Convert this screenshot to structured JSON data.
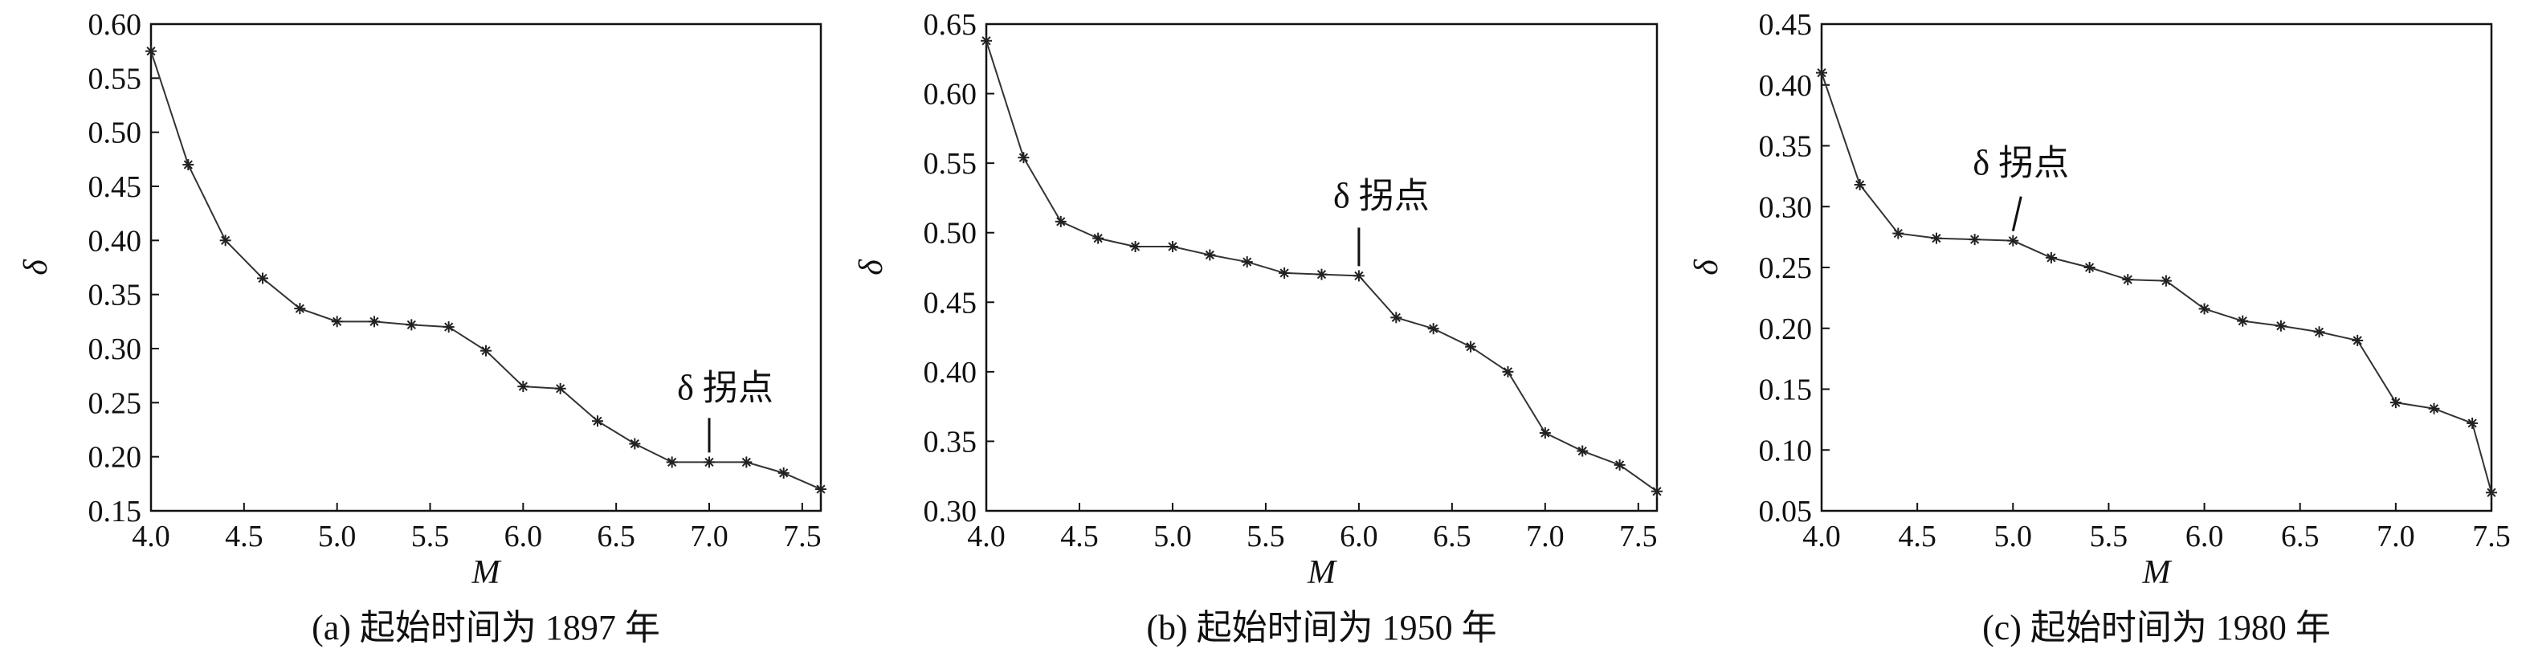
{
  "chart_data": [
    {
      "type": "line",
      "caption": "(a) 起始时间为 1897 年",
      "xlabel": "M",
      "ylabel": "δ",
      "xlim": [
        4.0,
        7.6
      ],
      "ylim": [
        0.15,
        0.6
      ],
      "xticks": [
        "4.0",
        "4.5",
        "5.0",
        "5.5",
        "6.0",
        "6.5",
        "7.0",
        "7.5"
      ],
      "yticks": [
        "0.15",
        "0.20",
        "0.25",
        "0.30",
        "0.35",
        "0.40",
        "0.45",
        "0.50",
        "0.55",
        "0.60"
      ],
      "grid": false,
      "marker": "asterisk",
      "x": [
        4.0,
        4.2,
        4.4,
        4.6,
        4.8,
        5.0,
        5.2,
        5.4,
        5.6,
        5.8,
        6.0,
        6.2,
        6.4,
        6.6,
        6.8,
        7.0,
        7.2,
        7.4,
        7.6
      ],
      "y": [
        0.575,
        0.47,
        0.4,
        0.365,
        0.337,
        0.325,
        0.325,
        0.322,
        0.32,
        0.298,
        0.265,
        0.263,
        0.233,
        0.212,
        0.195,
        0.195,
        0.195,
        0.185,
        0.17
      ],
      "annotation": {
        "text": "δ 拐点",
        "x": 7.0,
        "y": 0.195
      }
    },
    {
      "type": "line",
      "caption": "(b) 起始时间为 1950 年",
      "xlabel": "M",
      "ylabel": "δ",
      "xlim": [
        4.0,
        7.6
      ],
      "ylim": [
        0.3,
        0.65
      ],
      "xticks": [
        "4.0",
        "4.5",
        "5.0",
        "5.5",
        "6.0",
        "6.5",
        "7.0",
        "7.5"
      ],
      "yticks": [
        "0.30",
        "0.35",
        "0.40",
        "0.45",
        "0.50",
        "0.55",
        "0.60",
        "0.65"
      ],
      "grid": false,
      "marker": "asterisk",
      "x": [
        4.0,
        4.2,
        4.4,
        4.6,
        4.8,
        5.0,
        5.2,
        5.4,
        5.6,
        5.8,
        6.0,
        6.2,
        6.4,
        6.6,
        6.8,
        7.0,
        7.2,
        7.4,
        7.6
      ],
      "y": [
        0.638,
        0.554,
        0.508,
        0.496,
        0.49,
        0.49,
        0.484,
        0.479,
        0.471,
        0.47,
        0.469,
        0.439,
        0.431,
        0.418,
        0.4,
        0.356,
        0.343,
        0.333,
        0.314
      ],
      "annotation": {
        "text": "δ 拐点",
        "x": 6.0,
        "y": 0.469
      }
    },
    {
      "type": "line",
      "caption": "(c) 起始时间为 1980 年",
      "xlabel": "M",
      "ylabel": "δ",
      "xlim": [
        4.0,
        7.5
      ],
      "ylim": [
        0.05,
        0.45
      ],
      "xticks": [
        "4.0",
        "4.5",
        "5.0",
        "5.5",
        "6.0",
        "6.5",
        "7.0",
        "7.5"
      ],
      "yticks": [
        "0.05",
        "0.10",
        "0.15",
        "0.20",
        "0.25",
        "0.30",
        "0.35",
        "0.40",
        "0.45"
      ],
      "grid": false,
      "marker": "asterisk",
      "x": [
        4.0,
        4.2,
        4.4,
        4.6,
        4.8,
        5.0,
        5.2,
        5.4,
        5.6,
        5.8,
        6.0,
        6.2,
        6.4,
        6.6,
        6.8,
        7.0,
        7.2,
        7.4,
        7.5
      ],
      "y": [
        0.41,
        0.318,
        0.278,
        0.274,
        0.273,
        0.272,
        0.258,
        0.25,
        0.24,
        0.239,
        0.216,
        0.206,
        0.202,
        0.197,
        0.19,
        0.139,
        0.134,
        0.122,
        0.065
      ],
      "annotation": {
        "text": "δ 拐点",
        "x": 5.0,
        "y": 0.272
      }
    }
  ]
}
